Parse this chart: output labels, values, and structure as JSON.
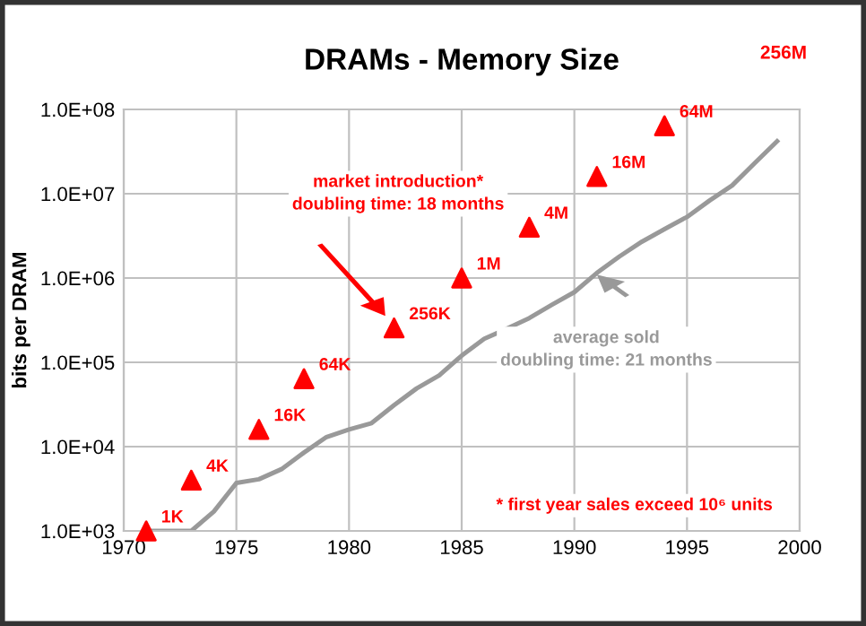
{
  "chart_data": {
    "type": "scatter",
    "title": "DRAMs - Memory Size",
    "ylabel": "bits per DRAM",
    "log": "y",
    "grid": true,
    "xlim": [
      1970,
      2000
    ],
    "xticks": [
      1970,
      1975,
      1980,
      1985,
      1990,
      1995,
      2000
    ],
    "ylim": [
      1000,
      100000000
    ],
    "yticks": [
      {
        "value": 1000,
        "label": "1.0E+03"
      },
      {
        "value": 10000,
        "label": "1.0E+04"
      },
      {
        "value": 100000,
        "label": "1.0E+05"
      },
      {
        "value": 1000000,
        "label": "1.0E+06"
      },
      {
        "value": 10000000,
        "label": "1.0E+07"
      },
      {
        "value": 100000000,
        "label": "1.0E+08"
      }
    ],
    "series": [
      {
        "type": "line",
        "color": "#999999",
        "marker": "none",
        "line_style": "solid",
        "x": [
          1971,
          1973,
          1974,
          1975,
          1976,
          1977,
          1978,
          1979,
          1980,
          1981,
          1982,
          1983,
          1984,
          1985,
          1986,
          1987,
          1988,
          1989,
          1990,
          1991,
          1992,
          1993,
          1994,
          1995,
          1996,
          1997,
          1998,
          1999
        ],
        "values": [
          1000,
          1000,
          1700,
          3700,
          4100,
          5400,
          8500,
          13000,
          16000,
          19000,
          31000,
          49000,
          70000,
          120000,
          190000,
          250000,
          335000,
          480000,
          680000,
          1150000,
          1800000,
          2700000,
          3800000,
          5300000,
          8300000,
          12500000,
          23000000,
          42000000
        ]
      },
      {
        "color": "#ff0000",
        "marker": "triangle",
        "x": [
          1971,
          1973,
          1976,
          1978,
          1982,
          1985,
          1988,
          1991,
          1994
        ],
        "values": [
          1000,
          4000,
          16000,
          64000,
          256000,
          1000000,
          4000000,
          16000000,
          64000000
        ],
        "value_labels": [
          "1K",
          "4K",
          "16K",
          "64K",
          "256K",
          "1M",
          "4M",
          "16M",
          "64M"
        ]
      }
    ],
    "annotations": [
      "market introduction*\ndoubling time: 18 months",
      "average sold\ndoubling time: 21 months",
      "* first year sales exceed 10⁶ units",
      "256M"
    ]
  }
}
